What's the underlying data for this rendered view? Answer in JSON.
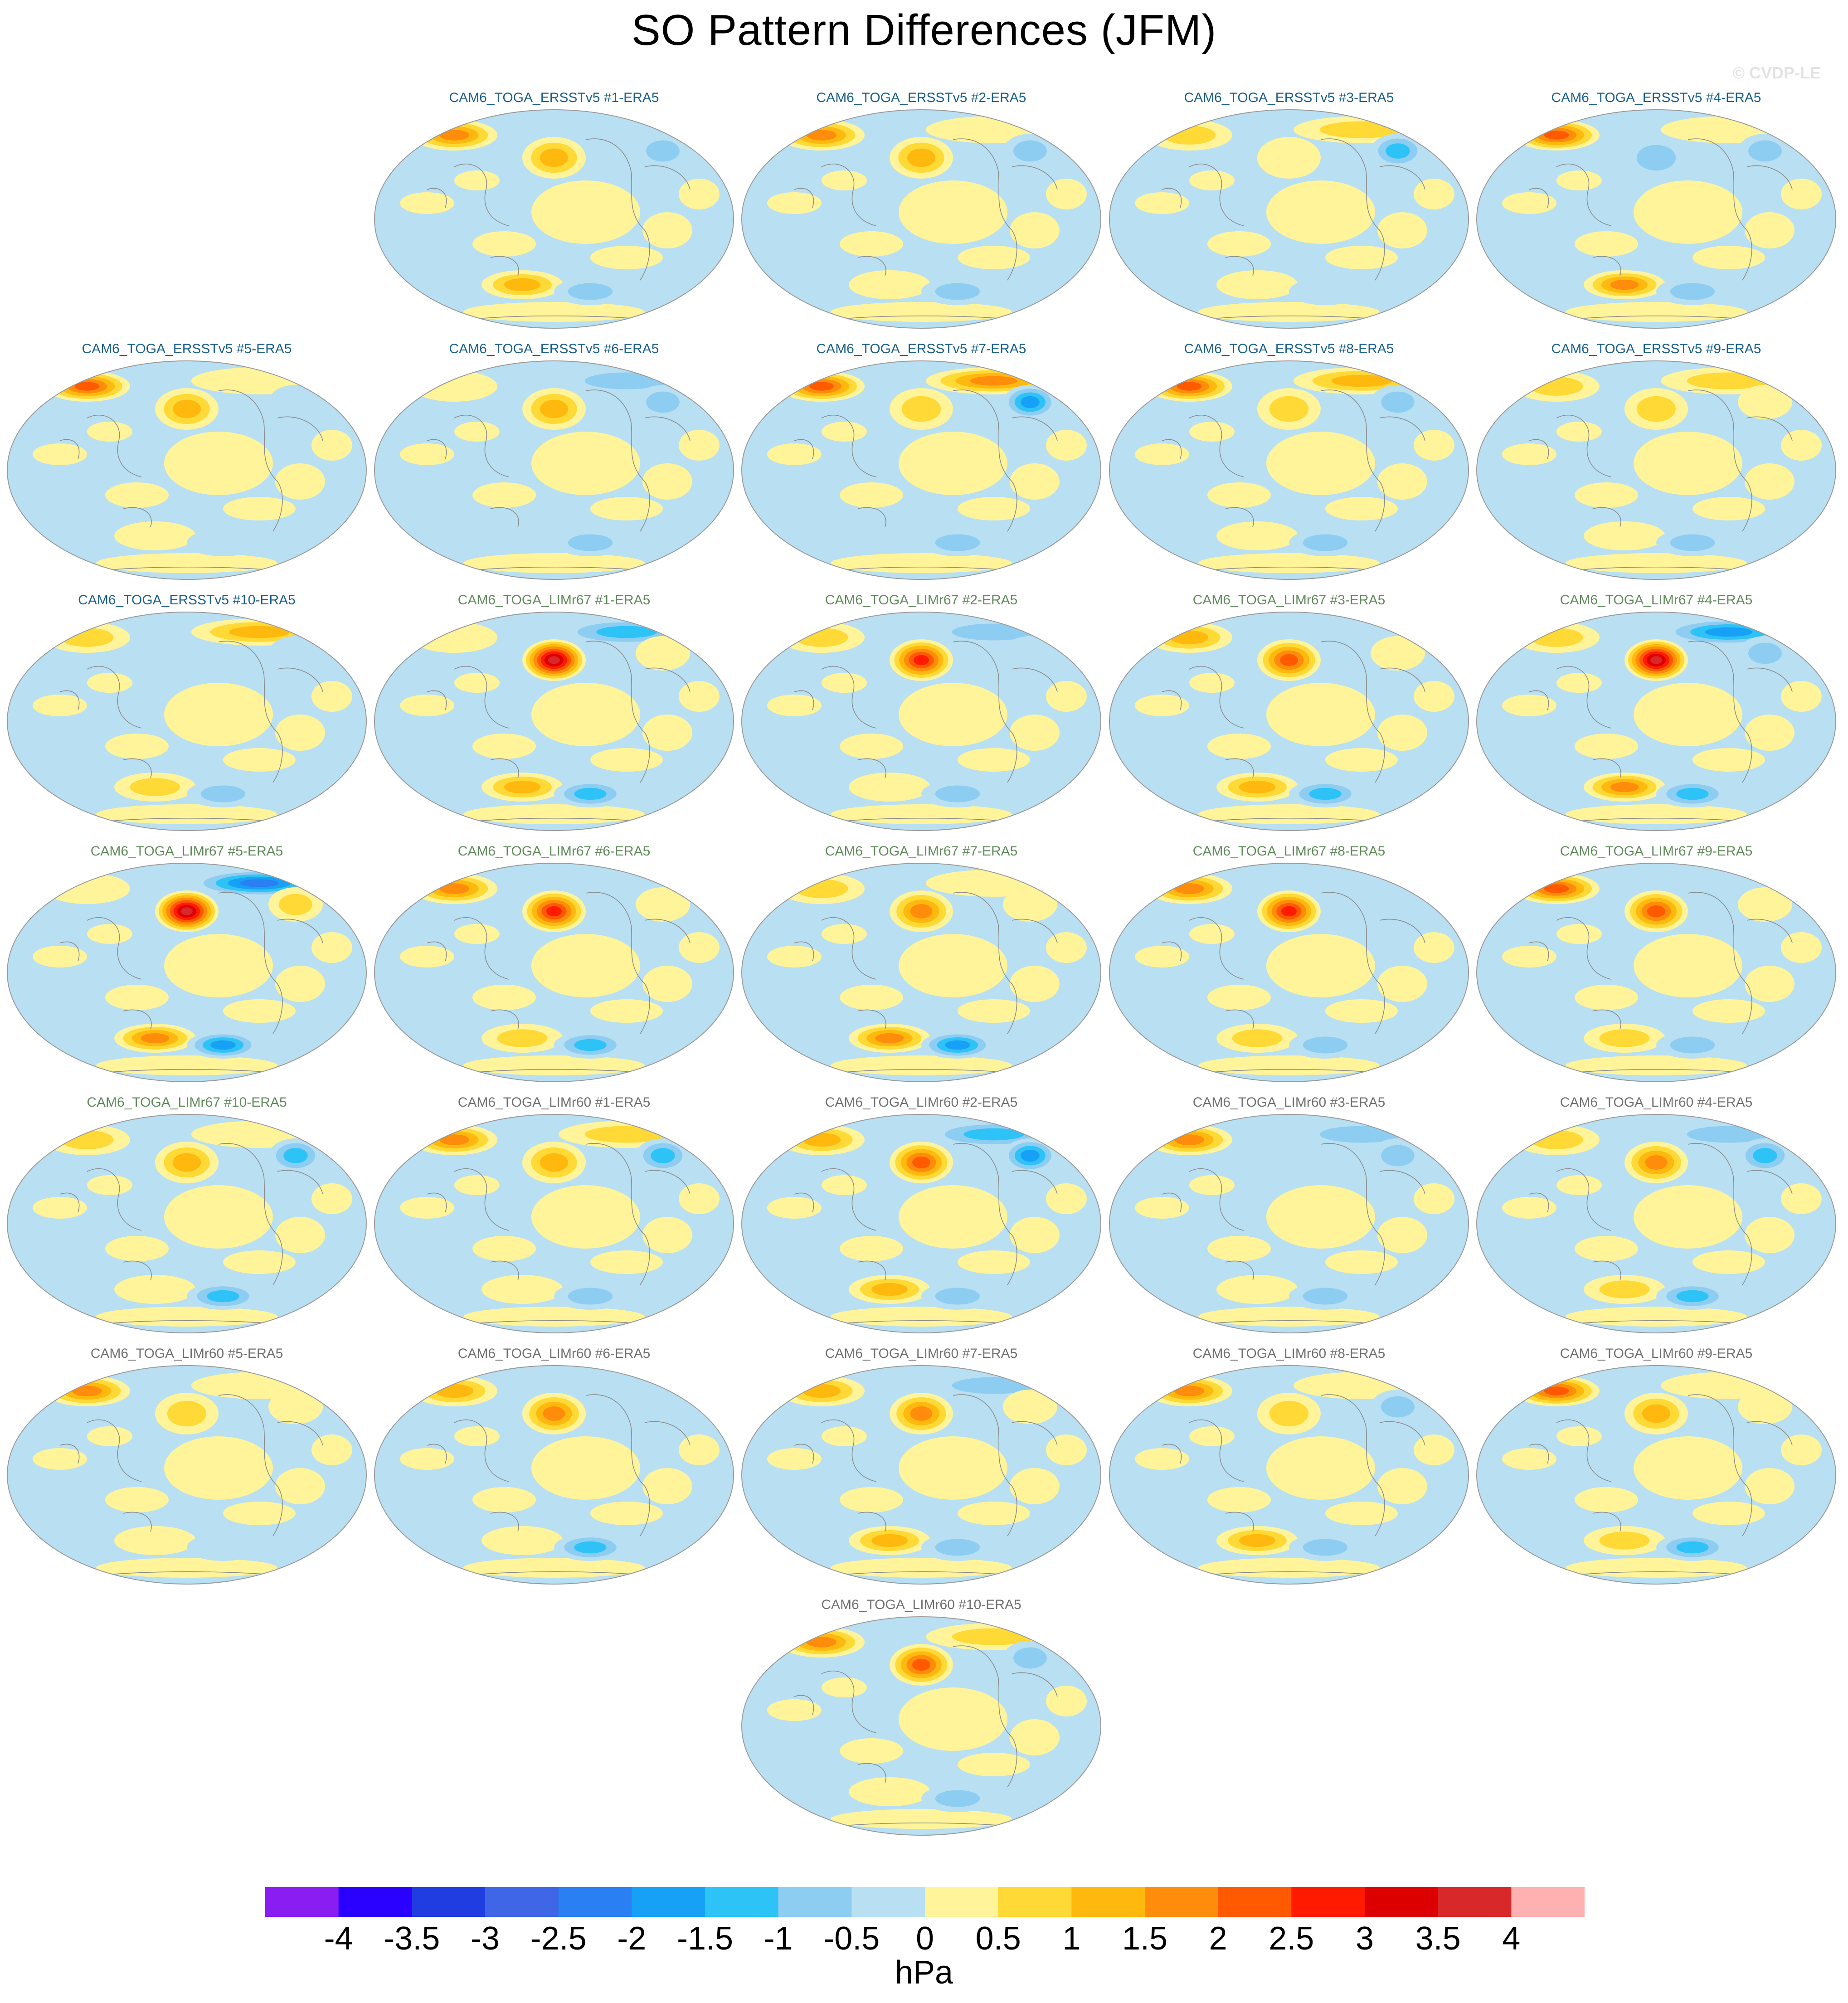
{
  "title": "SO Pattern Differences (JFM)",
  "watermark": "© CVDP-LE",
  "units": "hPa",
  "colors": {
    "ersst_title": "#1a5f8a",
    "limr67_title": "#5f8a5a",
    "limr60_title": "#707070",
    "land_outline": "#8a8a8a",
    "map_border": "#9a9a9a"
  },
  "colorbar": {
    "colors": [
      "#8a1ef2",
      "#2a00ff",
      "#1f3de0",
      "#3f66e6",
      "#2a7ff2",
      "#16a1f7",
      "#2ec3f7",
      "#8ecdf2",
      "#b9dff2",
      "#fff49a",
      "#ffd935",
      "#ffb90e",
      "#ff8c0a",
      "#ff5a00",
      "#ff1a00",
      "#dc0000",
      "#d8282a",
      "#ffb0b0"
    ],
    "tick_labels": [
      "-4",
      "-3.5",
      "-3",
      "-2.5",
      "-2",
      "-1.5",
      "-1",
      "-0.5",
      "0",
      "0.5",
      "1",
      "1.5",
      "2",
      "2.5",
      "3",
      "3.5",
      "4"
    ]
  },
  "chart_data": {
    "type": "heatmap",
    "projection": "global map, Robinson-style ellipse",
    "units": "hPa",
    "contour_levels": [
      -4,
      -3.5,
      -3,
      -2.5,
      -2,
      -1.5,
      -1,
      -0.5,
      0,
      0.5,
      1,
      1.5,
      2,
      2.5,
      3,
      3.5,
      4
    ],
    "panels": [
      {
        "title": "CAM6_TOGA_ERSSTv5 #1-ERA5",
        "group": "ersst",
        "north_pacific": 1.5,
        "south_pacific_west": 1.5,
        "south_pacific_east": -1.0,
        "north_atlantic": -1.0,
        "eurasia": 2.0,
        "arctic": -0.5
      },
      {
        "title": "CAM6_TOGA_ERSSTv5 #2-ERA5",
        "group": "ersst",
        "north_pacific": 1.5,
        "south_pacific_west": 0.5,
        "south_pacific_east": -1.0,
        "north_atlantic": -1.0,
        "eurasia": 2.0,
        "arctic": 0.5
      },
      {
        "title": "CAM6_TOGA_ERSSTv5 #3-ERA5",
        "group": "ersst",
        "north_pacific": 0.5,
        "south_pacific_west": 0.5,
        "south_pacific_east": -0.5,
        "north_atlantic": -1.5,
        "eurasia": 1.0,
        "arctic": 1.0
      },
      {
        "title": "CAM6_TOGA_ERSSTv5 #4-ERA5",
        "group": "ersst",
        "north_pacific": -1.0,
        "south_pacific_west": 2.0,
        "south_pacific_east": -1.0,
        "north_atlantic": -1.0,
        "eurasia": 2.5,
        "arctic": 0.5
      },
      {
        "title": "CAM6_TOGA_ERSSTv5 #5-ERA5",
        "group": "ersst",
        "north_pacific": 1.5,
        "south_pacific_west": 0.5,
        "south_pacific_east": -0.5,
        "north_atlantic": -0.5,
        "eurasia": 2.5,
        "arctic": 0.5
      },
      {
        "title": "CAM6_TOGA_ERSSTv5 #6-ERA5",
        "group": "ersst",
        "north_pacific": 1.5,
        "south_pacific_west": -0.5,
        "south_pacific_east": -1.0,
        "north_atlantic": -1.0,
        "eurasia": 0.5,
        "arctic": -1.0
      },
      {
        "title": "CAM6_TOGA_ERSSTv5 #7-ERA5",
        "group": "ersst",
        "north_pacific": 1.0,
        "south_pacific_west": -0.5,
        "south_pacific_east": -1.0,
        "north_atlantic": -2.0,
        "eurasia": 2.5,
        "arctic": 2.0
      },
      {
        "title": "CAM6_TOGA_ERSSTv5 #8-ERA5",
        "group": "ersst",
        "north_pacific": 1.0,
        "south_pacific_west": 0.5,
        "south_pacific_east": -1.0,
        "north_atlantic": -1.0,
        "eurasia": 2.5,
        "arctic": 1.5
      },
      {
        "title": "CAM6_TOGA_ERSSTv5 #9-ERA5",
        "group": "ersst",
        "north_pacific": 1.0,
        "south_pacific_west": 0.5,
        "south_pacific_east": -1.0,
        "north_atlantic": 0.5,
        "eurasia": 1.0,
        "arctic": 1.0
      },
      {
        "title": "CAM6_TOGA_ERSSTv5 #10-ERA5",
        "group": "ersst",
        "north_pacific": -0.5,
        "south_pacific_west": 1.0,
        "south_pacific_east": -1.0,
        "north_atlantic": -0.5,
        "eurasia": 1.0,
        "arctic": 1.5
      },
      {
        "title": "CAM6_TOGA_LIMr67 #1-ERA5",
        "group": "limr67",
        "north_pacific": 4.0,
        "south_pacific_west": 1.5,
        "south_pacific_east": -1.5,
        "north_atlantic": 0.5,
        "eurasia": 0.5,
        "arctic": -1.5
      },
      {
        "title": "CAM6_TOGA_LIMr67 #2-ERA5",
        "group": "limr67",
        "north_pacific": 3.0,
        "south_pacific_west": 0.5,
        "south_pacific_east": -1.0,
        "north_atlantic": -0.5,
        "eurasia": 1.0,
        "arctic": -1.0
      },
      {
        "title": "CAM6_TOGA_LIMr67 #3-ERA5",
        "group": "limr67",
        "north_pacific": 2.5,
        "south_pacific_west": 1.5,
        "south_pacific_east": -1.5,
        "north_atlantic": 0.5,
        "eurasia": 1.5,
        "arctic": -0.5
      },
      {
        "title": "CAM6_TOGA_LIMr67 #4-ERA5",
        "group": "limr67",
        "north_pacific": 4.0,
        "south_pacific_west": 2.0,
        "south_pacific_east": -1.5,
        "north_atlantic": -1.0,
        "eurasia": 1.0,
        "arctic": -2.0
      },
      {
        "title": "CAM6_TOGA_LIMr67 #5-ERA5",
        "group": "limr67",
        "north_pacific": 4.0,
        "south_pacific_west": 2.0,
        "south_pacific_east": -2.0,
        "north_atlantic": 1.0,
        "eurasia": 0.5,
        "arctic": -2.5
      },
      {
        "title": "CAM6_TOGA_LIMr67 #6-ERA5",
        "group": "limr67",
        "north_pacific": 3.0,
        "south_pacific_west": 1.0,
        "south_pacific_east": -1.5,
        "north_atlantic": 0.5,
        "eurasia": 2.0,
        "arctic": -0.5
      },
      {
        "title": "CAM6_TOGA_LIMr67 #7-ERA5",
        "group": "limr67",
        "north_pacific": 2.0,
        "south_pacific_west": 2.0,
        "south_pacific_east": -2.0,
        "north_atlantic": 0.5,
        "eurasia": 1.0,
        "arctic": 0.5
      },
      {
        "title": "CAM6_TOGA_LIMr67 #8-ERA5",
        "group": "limr67",
        "north_pacific": 3.0,
        "south_pacific_west": 1.0,
        "south_pacific_east": -1.0,
        "north_atlantic": -0.5,
        "eurasia": 2.0,
        "arctic": -0.5
      },
      {
        "title": "CAM6_TOGA_LIMr67 #9-ERA5",
        "group": "limr67",
        "north_pacific": 2.5,
        "south_pacific_west": 1.0,
        "south_pacific_east": -1.0,
        "north_atlantic": 0.5,
        "eurasia": 2.5,
        "arctic": -0.5
      },
      {
        "title": "CAM6_TOGA_LIMr67 #10-ERA5",
        "group": "limr67",
        "north_pacific": 1.5,
        "south_pacific_west": 0.5,
        "south_pacific_east": -1.5,
        "north_atlantic": -1.5,
        "eurasia": 1.0,
        "arctic": 0.5
      },
      {
        "title": "CAM6_TOGA_LIMr60 #1-ERA5",
        "group": "limr60",
        "north_pacific": 1.5,
        "south_pacific_west": 0.5,
        "south_pacific_east": -1.0,
        "north_atlantic": -1.5,
        "eurasia": 2.0,
        "arctic": 1.0
      },
      {
        "title": "CAM6_TOGA_LIMr60 #2-ERA5",
        "group": "limr60",
        "north_pacific": 2.5,
        "south_pacific_west": 1.5,
        "south_pacific_east": -1.0,
        "north_atlantic": -2.0,
        "eurasia": 1.5,
        "arctic": -1.5
      },
      {
        "title": "CAM6_TOGA_LIMr60 #3-ERA5",
        "group": "limr60",
        "north_pacific": -0.5,
        "south_pacific_west": 0.5,
        "south_pacific_east": -1.0,
        "north_atlantic": -1.0,
        "eurasia": 2.0,
        "arctic": -1.0
      },
      {
        "title": "CAM6_TOGA_LIMr60 #4-ERA5",
        "group": "limr60",
        "north_pacific": 2.0,
        "south_pacific_west": 1.0,
        "south_pacific_east": -1.5,
        "north_atlantic": -1.5,
        "eurasia": 1.0,
        "arctic": -1.0
      },
      {
        "title": "CAM6_TOGA_LIMr60 #5-ERA5",
        "group": "limr60",
        "north_pacific": 1.0,
        "south_pacific_west": 0.5,
        "south_pacific_east": -0.5,
        "north_atlantic": 0.5,
        "eurasia": 2.0,
        "arctic": 0.5
      },
      {
        "title": "CAM6_TOGA_LIMr60 #6-ERA5",
        "group": "limr60",
        "north_pacific": 2.0,
        "south_pacific_west": 0.5,
        "south_pacific_east": -1.5,
        "north_atlantic": -0.5,
        "eurasia": 1.5,
        "arctic": -0.5
      },
      {
        "title": "CAM6_TOGA_LIMr60 #7-ERA5",
        "group": "limr60",
        "north_pacific": 2.0,
        "south_pacific_west": 1.5,
        "south_pacific_east": -1.0,
        "north_atlantic": 0.5,
        "eurasia": 1.5,
        "arctic": -1.0
      },
      {
        "title": "CAM6_TOGA_LIMr60 #8-ERA5",
        "group": "limr60",
        "north_pacific": 1.0,
        "south_pacific_west": 1.5,
        "south_pacific_east": -1.0,
        "north_atlantic": -1.0,
        "eurasia": 2.0,
        "arctic": 0.5
      },
      {
        "title": "CAM6_TOGA_LIMr60 #9-ERA5",
        "group": "limr60",
        "north_pacific": 1.5,
        "south_pacific_west": 1.0,
        "south_pacific_east": -1.5,
        "north_atlantic": 0.5,
        "eurasia": 2.5,
        "arctic": 0.5
      },
      {
        "title": "CAM6_TOGA_LIMr60 #10-ERA5",
        "group": "limr60",
        "north_pacific": 2.5,
        "south_pacific_west": 0.5,
        "south_pacific_east": -1.0,
        "north_atlantic": -1.0,
        "eurasia": 2.0,
        "arctic": 1.0
      }
    ]
  }
}
